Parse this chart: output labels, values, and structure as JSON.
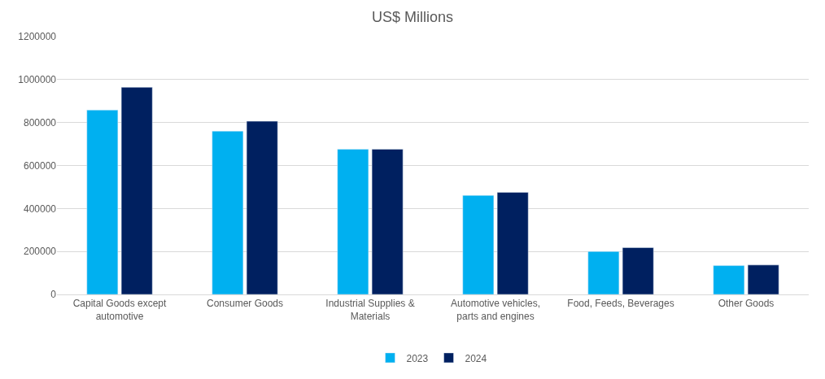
{
  "chart_data": {
    "type": "bar",
    "title": "US$ Millions",
    "categories": [
      "Capital Goods except automotive",
      "Consumer Goods",
      "Industrial Supplies & Materials",
      "Automotive vehicles, parts and engines",
      "Food, Feeds, Beverages",
      "Other Goods"
    ],
    "series": [
      {
        "name": "2023",
        "color": "#00b0f0",
        "values": [
          858000,
          760000,
          676000,
          461000,
          200000,
          134000
        ]
      },
      {
        "name": "2024",
        "color": "#002060",
        "values": [
          964000,
          806000,
          676000,
          475000,
          218000,
          137000
        ]
      }
    ],
    "ylim": [
      0,
      1200000
    ],
    "yticks": [
      0,
      200000,
      400000,
      600000,
      800000,
      1000000,
      1200000
    ],
    "grid": "y",
    "legend": "bottom"
  }
}
